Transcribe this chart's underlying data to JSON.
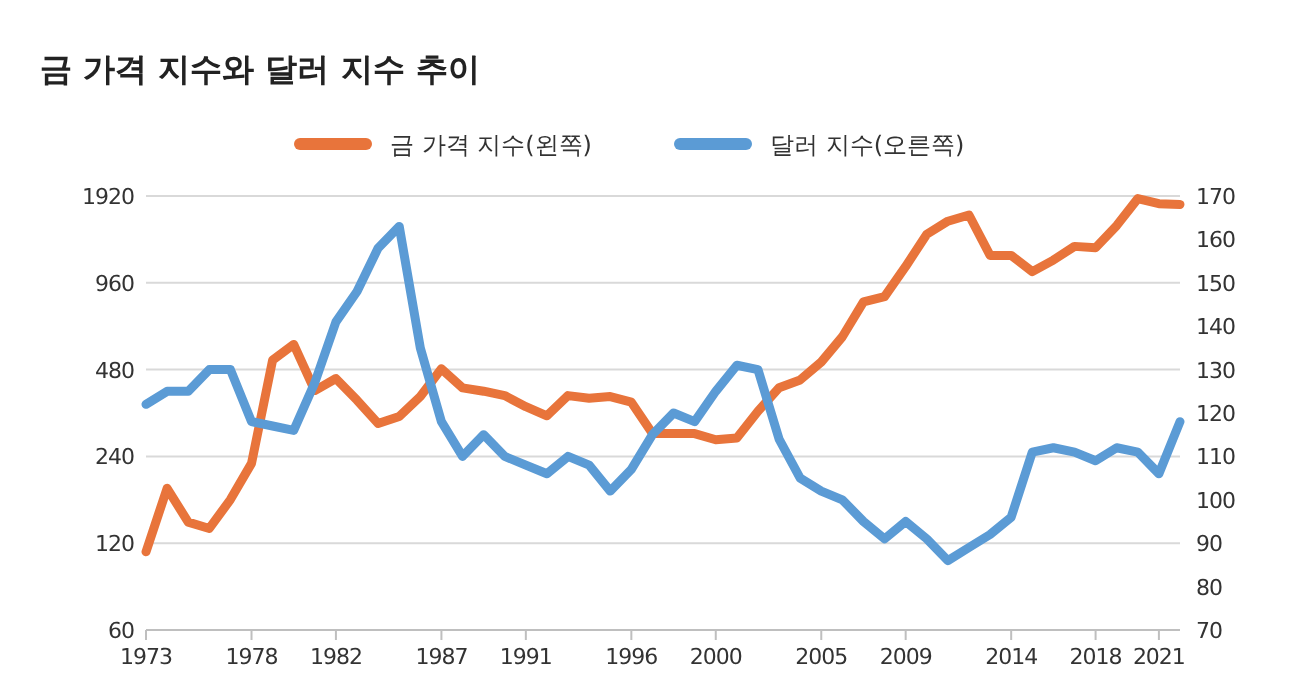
{
  "chart_data": {
    "type": "line",
    "title": "금 가격 지수와 달러 지수 추이",
    "x": [
      1973,
      1974,
      1975,
      1976,
      1977,
      1978,
      1979,
      1980,
      1981,
      1982,
      1983,
      1984,
      1985,
      1986,
      1987,
      1988,
      1989,
      1990,
      1991,
      1992,
      1993,
      1994,
      1995,
      1996,
      1997,
      1998,
      1999,
      2000,
      2001,
      2002,
      2003,
      2004,
      2005,
      2006,
      2007,
      2008,
      2009,
      2010,
      2011,
      2012,
      2013,
      2014,
      2015,
      2016,
      2017,
      2018,
      2019,
      2020,
      2021,
      2022
    ],
    "series": [
      {
        "name": "금 가격 지수(왼쪽)",
        "color": "#e8743b",
        "values": [
          112,
          186,
          142,
          135,
          170,
          227,
          518,
          587,
          406,
          447,
          376,
          312,
          330,
          387,
          483,
          415,
          404,
          390,
          357,
          332,
          390,
          382,
          387,
          370,
          288,
          288,
          288,
          274,
          278,
          344,
          415,
          442,
          510,
          624,
          824,
          860,
          1094,
          1415,
          1570,
          1650,
          1195,
          1195,
          1050,
          1151,
          1284,
          1270,
          1516,
          1880,
          1806,
          1795
        ]
      },
      {
        "name": "달러 지수(오른쪽)",
        "color": "#5b9bd5",
        "axis": "y2",
        "values": [
          122,
          125,
          125,
          130,
          130,
          118,
          117,
          116,
          127,
          141,
          148,
          158,
          163,
          135,
          118,
          110,
          115,
          110,
          108,
          106,
          110,
          108,
          102,
          107,
          115,
          120,
          118,
          125,
          131,
          130,
          114,
          105,
          102,
          100,
          95,
          91,
          95,
          91,
          86,
          89,
          92,
          96,
          111,
          112,
          111,
          109,
          112,
          111,
          106,
          118
        ]
      }
    ],
    "xlim": [
      1973,
      2022
    ],
    "xticks": [
      1973,
      1978,
      1982,
      1987,
      1991,
      1996,
      2000,
      2005,
      2009,
      2014,
      2018,
      2021
    ],
    "ylim": [
      60,
      1920
    ],
    "yticks": [
      60,
      120,
      240,
      480,
      960,
      1920
    ],
    "log": "y",
    "y2lim": [
      70,
      170
    ],
    "y2ticks": [
      70,
      80,
      90,
      100,
      110,
      120,
      130,
      140,
      150,
      160,
      170
    ],
    "grid": "y",
    "legend": "top",
    "marker": "none",
    "line_style": "solid"
  }
}
